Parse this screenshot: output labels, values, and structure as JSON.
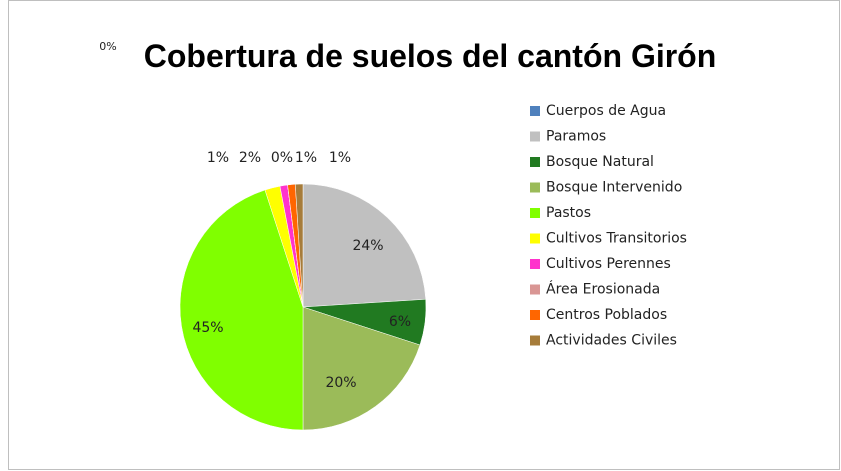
{
  "chart_data": {
    "type": "pie",
    "title": "Cobertura de suelos del cantón Girón",
    "categories": [
      "Cuerpos de Agua",
      "Paramos",
      "Bosque Natural",
      "Bosque Intervenido",
      "Pastos",
      "Cultivos Transitorios",
      "Cultivos Perennes",
      "Área Erosionada",
      "Centros Poblados",
      "Actividades Civiles"
    ],
    "values": [
      0,
      24,
      6,
      20,
      45,
      2,
      1,
      0,
      1,
      1
    ],
    "value_labels": [
      "0%",
      "24%",
      "6%",
      "20%",
      "45%",
      "2%",
      "1%",
      "0%",
      "1%",
      "1%"
    ],
    "colors": [
      "#4f81bd",
      "#c0c0c0",
      "#217a21",
      "#9bbb59",
      "#80ff00",
      "#ffff00",
      "#ff33cc",
      "#d99694",
      "#ff6600",
      "#a67c3a"
    ],
    "legend": "right"
  }
}
